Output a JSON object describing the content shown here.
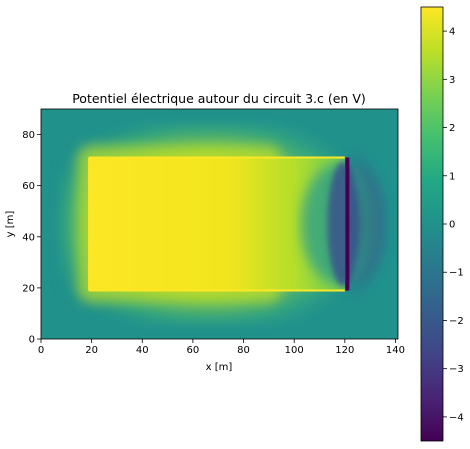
{
  "chart_data": {
    "type": "heatmap",
    "title": "Potentiel électrique autour du circuit 3.c (en V)",
    "xlabel": "x [m]",
    "ylabel": "y [m]",
    "xlim": [
      0,
      141
    ],
    "ylim": [
      0,
      90
    ],
    "xticks": [
      0,
      20,
      40,
      60,
      80,
      100,
      120,
      140
    ],
    "yticks": [
      0,
      20,
      40,
      60,
      80
    ],
    "colormap": "viridis",
    "colorbar": {
      "range": [
        -4.5,
        4.5
      ],
      "ticks": [
        4,
        3,
        2,
        1,
        0,
        -1,
        -2,
        -3,
        -4
      ]
    },
    "circuit": {
      "high_potential_region": {
        "x": [
          19,
          120
        ],
        "y": [
          19,
          71
        ],
        "value": 4.5
      },
      "low_potential_bar": {
        "x": 121,
        "y": [
          19,
          71
        ],
        "value": -4.5
      },
      "background_value": 0.0
    }
  }
}
